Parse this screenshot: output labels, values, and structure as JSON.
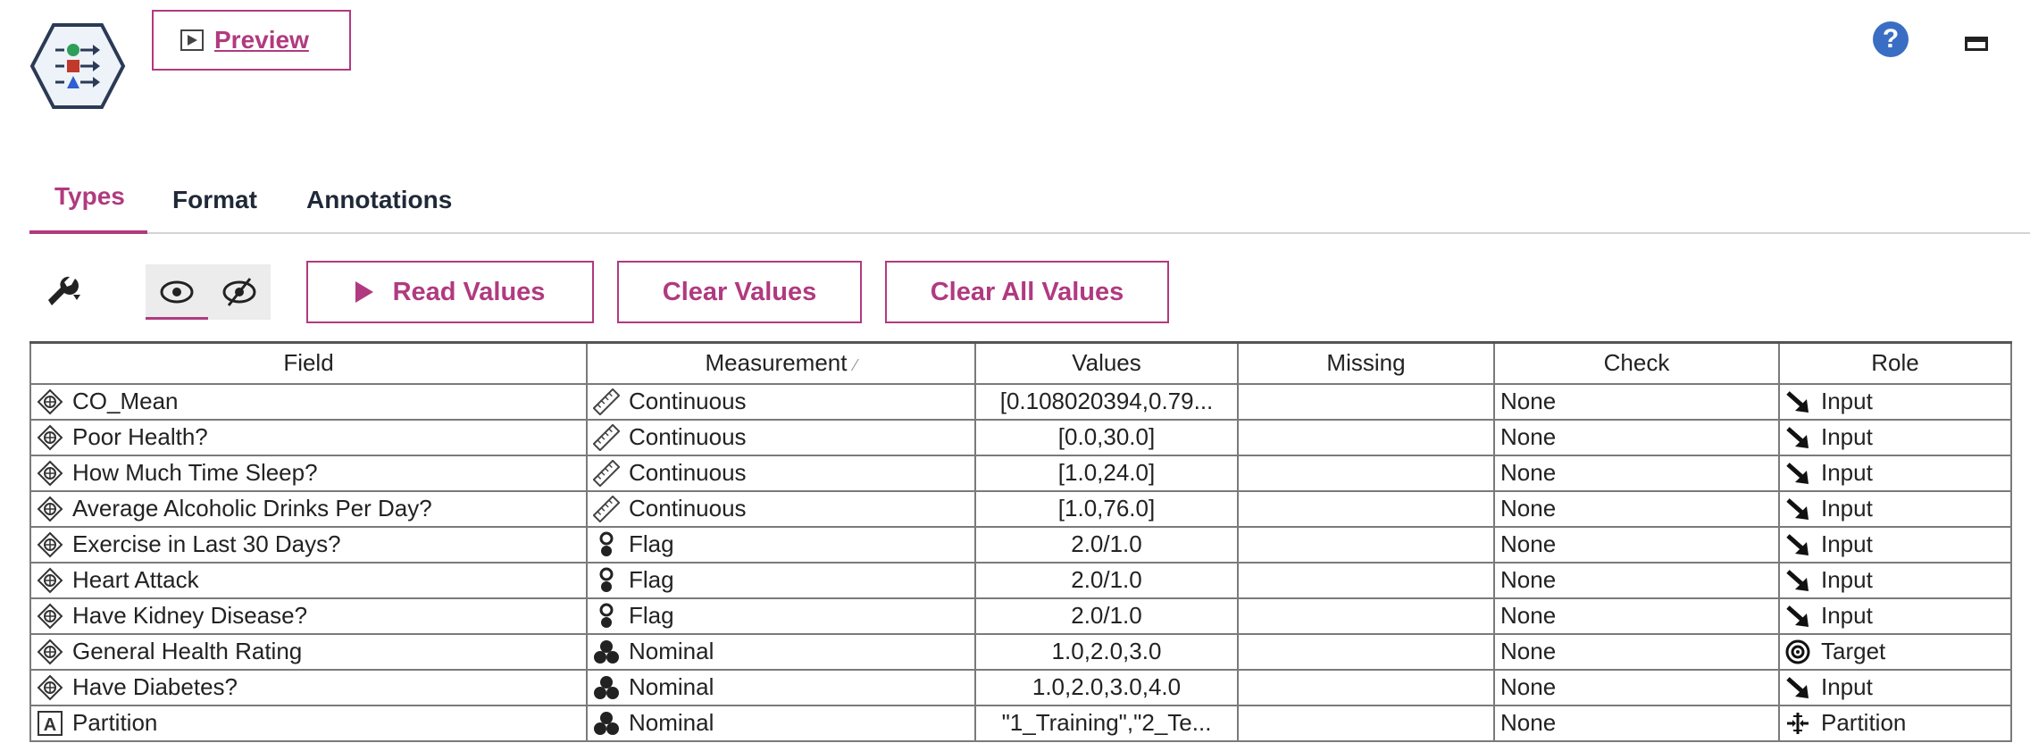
{
  "header": {
    "preview_label": "Preview",
    "help_symbol": "?"
  },
  "tabs": [
    {
      "label": "Types",
      "active": true
    },
    {
      "label": "Format",
      "active": false
    },
    {
      "label": "Annotations",
      "active": false
    }
  ],
  "toolbar": {
    "read_values": "Read Values",
    "clear_values": "Clear Values",
    "clear_all_values": "Clear All Values"
  },
  "table": {
    "columns": [
      "Field",
      "Measurement",
      "Values",
      "Missing",
      "Check",
      "Role"
    ],
    "rows": [
      {
        "field_icon": "numeric-field-icon",
        "field": "CO_Mean",
        "measurement_icon": "ruler-icon",
        "measurement": "Continuous",
        "values": "[0.108020394,0.79...",
        "missing": "",
        "check": "None",
        "role_icon": "input-arrow-icon",
        "role": "Input"
      },
      {
        "field_icon": "numeric-field-icon",
        "field": "Poor Health?",
        "measurement_icon": "ruler-icon",
        "measurement": "Continuous",
        "values": "[0.0,30.0]",
        "missing": "",
        "check": "None",
        "role_icon": "input-arrow-icon",
        "role": "Input"
      },
      {
        "field_icon": "numeric-field-icon",
        "field": "How Much Time Sleep?",
        "measurement_icon": "ruler-icon",
        "measurement": "Continuous",
        "values": "[1.0,24.0]",
        "missing": "",
        "check": "None",
        "role_icon": "input-arrow-icon",
        "role": "Input"
      },
      {
        "field_icon": "numeric-field-icon",
        "field": "Average Alcoholic Drinks Per Day?",
        "measurement_icon": "ruler-icon",
        "measurement": "Continuous",
        "values": "[1.0,76.0]",
        "missing": "",
        "check": "None",
        "role_icon": "input-arrow-icon",
        "role": "Input"
      },
      {
        "field_icon": "numeric-field-icon",
        "field": "Exercise in Last 30 Days?",
        "measurement_icon": "flag-icon",
        "measurement": "Flag",
        "values": "2.0/1.0",
        "missing": "",
        "check": "None",
        "role_icon": "input-arrow-icon",
        "role": "Input"
      },
      {
        "field_icon": "numeric-field-icon",
        "field": "Heart Attack",
        "measurement_icon": "flag-icon",
        "measurement": "Flag",
        "values": "2.0/1.0",
        "missing": "",
        "check": "None",
        "role_icon": "input-arrow-icon",
        "role": "Input"
      },
      {
        "field_icon": "numeric-field-icon",
        "field": "Have Kidney Disease?",
        "measurement_icon": "flag-icon",
        "measurement": "Flag",
        "values": "2.0/1.0",
        "missing": "",
        "check": "None",
        "role_icon": "input-arrow-icon",
        "role": "Input"
      },
      {
        "field_icon": "numeric-field-icon",
        "field": "General Health Rating",
        "measurement_icon": "nominal-icon",
        "measurement": "Nominal",
        "values": "1.0,2.0,3.0",
        "missing": "",
        "check": "None",
        "role_icon": "target-icon",
        "role": "Target"
      },
      {
        "field_icon": "numeric-field-icon",
        "field": "Have Diabetes?",
        "measurement_icon": "nominal-icon",
        "measurement": "Nominal",
        "values": "1.0,2.0,3.0,4.0",
        "missing": "",
        "check": "None",
        "role_icon": "input-arrow-icon",
        "role": "Input"
      },
      {
        "field_icon": "string-field-icon",
        "field": "Partition",
        "measurement_icon": "nominal-icon",
        "measurement": "Nominal",
        "values": "\"1_Training\",\"2_Te...",
        "missing": "",
        "check": "None",
        "role_icon": "partition-icon",
        "role": "Partition"
      }
    ]
  },
  "colors": {
    "accent": "#b03a7f",
    "help_blue": "#3a6ec4",
    "grid_border": "#7a7a7a"
  }
}
